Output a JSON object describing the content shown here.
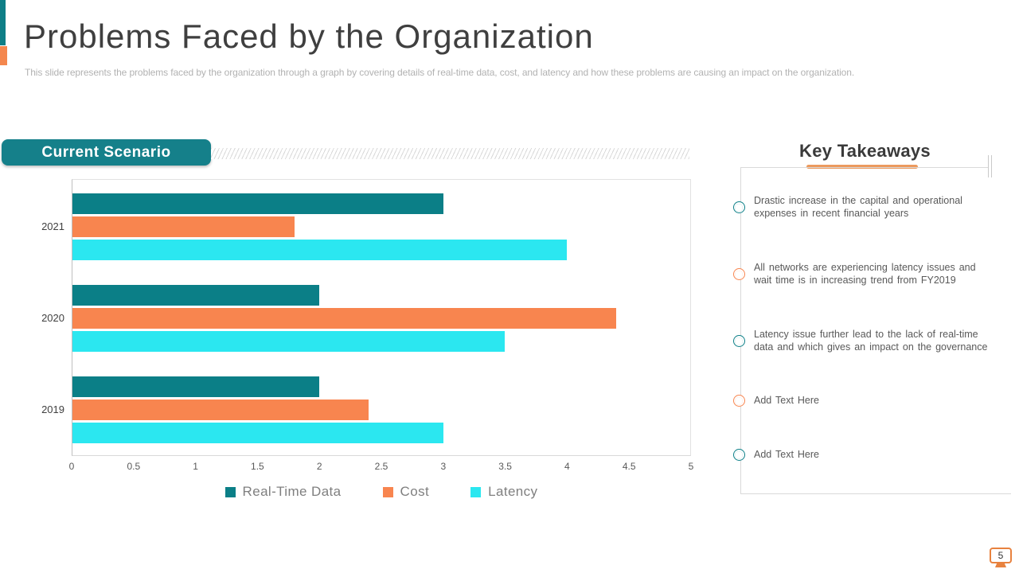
{
  "slide": {
    "title": "Problems Faced by the Organization",
    "subtitle": "This slide represents the problems faced by the organization through a graph by covering details of real-time data, cost, and latency and how these problems are causing an impact on the organization.",
    "page_number": "5"
  },
  "chart_section": {
    "banner_label": "Current Scenario"
  },
  "chart_data": {
    "type": "bar",
    "orientation": "horizontal",
    "title": "Current Scenario",
    "categories": [
      "2021",
      "2020",
      "2019"
    ],
    "series": [
      {
        "name": "Real-Time Data",
        "color": "#0B7F87",
        "values": [
          3.0,
          2.0,
          2.0
        ]
      },
      {
        "name": "Cost",
        "color": "#F8854F",
        "values": [
          1.8,
          4.4,
          2.4
        ]
      },
      {
        "name": "Latency",
        "color": "#2BE7F0",
        "values": [
          4.0,
          3.5,
          3.0
        ]
      }
    ],
    "xlim": [
      0,
      5
    ],
    "x_ticks": [
      "0",
      "0.5",
      "1",
      "1.5",
      "2",
      "2.5",
      "3",
      "3.5",
      "4",
      "4.5",
      "5"
    ],
    "grid": false,
    "legend_position": "bottom"
  },
  "takeaways": {
    "heading": "Key Takeaways",
    "items": [
      {
        "icon_color": "#0B7F87",
        "text": "Drastic increase in the capital and operational expenses in recent financial years"
      },
      {
        "icon_color": "#F8854F",
        "text": "All networks are experiencing latency issues and wait time is in increasing trend from FY2019"
      },
      {
        "icon_color": "#0B7F87",
        "text": "Latency issue further lead to the lack of real-time data and which gives an impact on the governance"
      },
      {
        "icon_color": "#F8854F",
        "text": "Add Text Here"
      },
      {
        "icon_color": "#0B7F87",
        "text": "Add Text Here"
      }
    ]
  },
  "colors": {
    "teal": "#0B7F87",
    "orange": "#F8854F",
    "cyan": "#2BE7F0",
    "accent_orange": "#EC9A5E",
    "border_gray": "#D9D9D9"
  }
}
